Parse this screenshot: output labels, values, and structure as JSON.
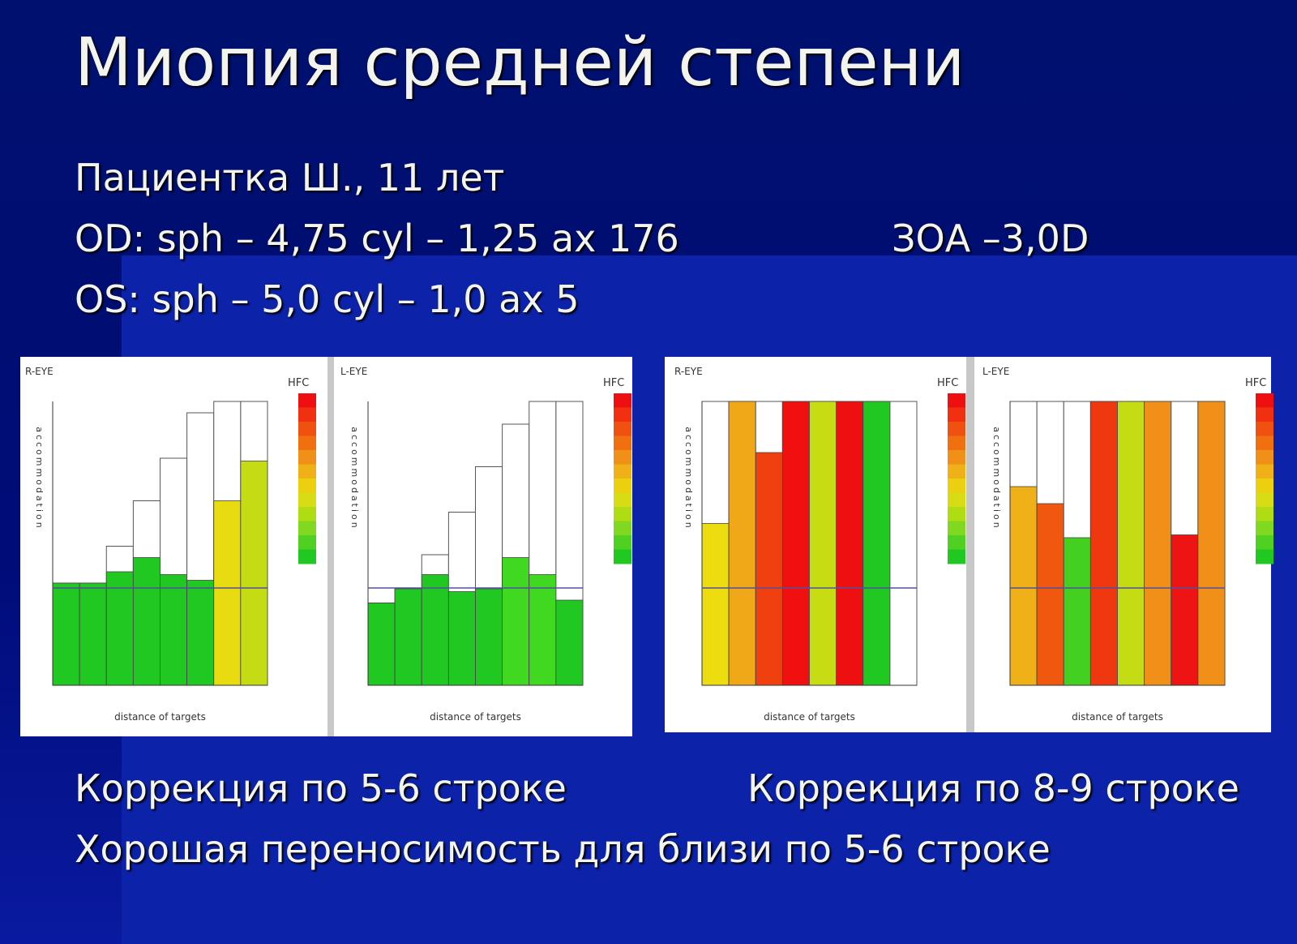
{
  "title": "Миопия средней степени",
  "lines": [
    "Пациентка Ш., 11 лет",
    "OD: sph – 4,75 cyl – 1,25 ax 176",
    "OS: sph – 5,0 cyl – 1,0 ax 5"
  ],
  "zoa": "ЗОА –3,0D",
  "captions": [
    "Коррекция по 5-6 строке",
    "Коррекция по 8-9 строке",
    "Хорошая переносимость для близи по 5-6 строке"
  ],
  "charts": [
    {
      "type": "bar",
      "eye": "R-EYE",
      "scale_label": "HFC",
      "y_label": "accommodation",
      "x_label": "distance of targets",
      "ylim": [
        0,
        100
      ],
      "values": [
        36,
        36,
        40,
        45,
        39,
        37,
        65,
        79
      ],
      "range_values": [
        36,
        36,
        49,
        65,
        80,
        96,
        100,
        100
      ],
      "colors": [
        "#22c822",
        "#22c822",
        "#22c822",
        "#22c822",
        "#22c822",
        "#22c822",
        "#e8dc10",
        "#c4dc14"
      ]
    },
    {
      "type": "bar",
      "eye": "L-EYE",
      "scale_label": "HFC",
      "y_label": "accommodation",
      "x_label": "distance of targets",
      "ylim": [
        0,
        100
      ],
      "values": [
        29,
        34,
        39,
        33,
        34,
        45,
        39,
        30
      ],
      "range_values": [
        29,
        34,
        46,
        61,
        77,
        92,
        100,
        100
      ],
      "colors": [
        "#22c822",
        "#22c822",
        "#22c822",
        "#22c822",
        "#22c822",
        "#40d820",
        "#40d820",
        "#22c822"
      ]
    },
    {
      "type": "bar",
      "eye": "R-EYE",
      "scale_label": "HFC",
      "y_label": "accommodation",
      "x_label": "distance of targets",
      "ylim": [
        0,
        100
      ],
      "values": [
        57,
        100,
        82,
        100,
        100,
        100,
        100,
        0
      ],
      "range_values": [
        100,
        100,
        100,
        100,
        100,
        100,
        100,
        100
      ],
      "colors": [
        "#ecdc10",
        "#f0a818",
        "#f04010",
        "#f01010",
        "#c8dc14",
        "#ee1010",
        "#22c822",
        "#ffffff"
      ]
    },
    {
      "type": "bar",
      "eye": "L-EYE",
      "scale_label": "HFC",
      "y_label": "accommodation",
      "x_label": "distance of targets",
      "ylim": [
        0,
        100
      ],
      "values": [
        70,
        64,
        52,
        100,
        100,
        100,
        53,
        100
      ],
      "range_values": [
        100,
        100,
        100,
        100,
        100,
        100,
        100,
        100
      ],
      "colors": [
        "#f0b018",
        "#f05810",
        "#44d020",
        "#f03810",
        "#c4dc14",
        "#f09018",
        "#ee1414",
        "#f09018"
      ]
    }
  ]
}
